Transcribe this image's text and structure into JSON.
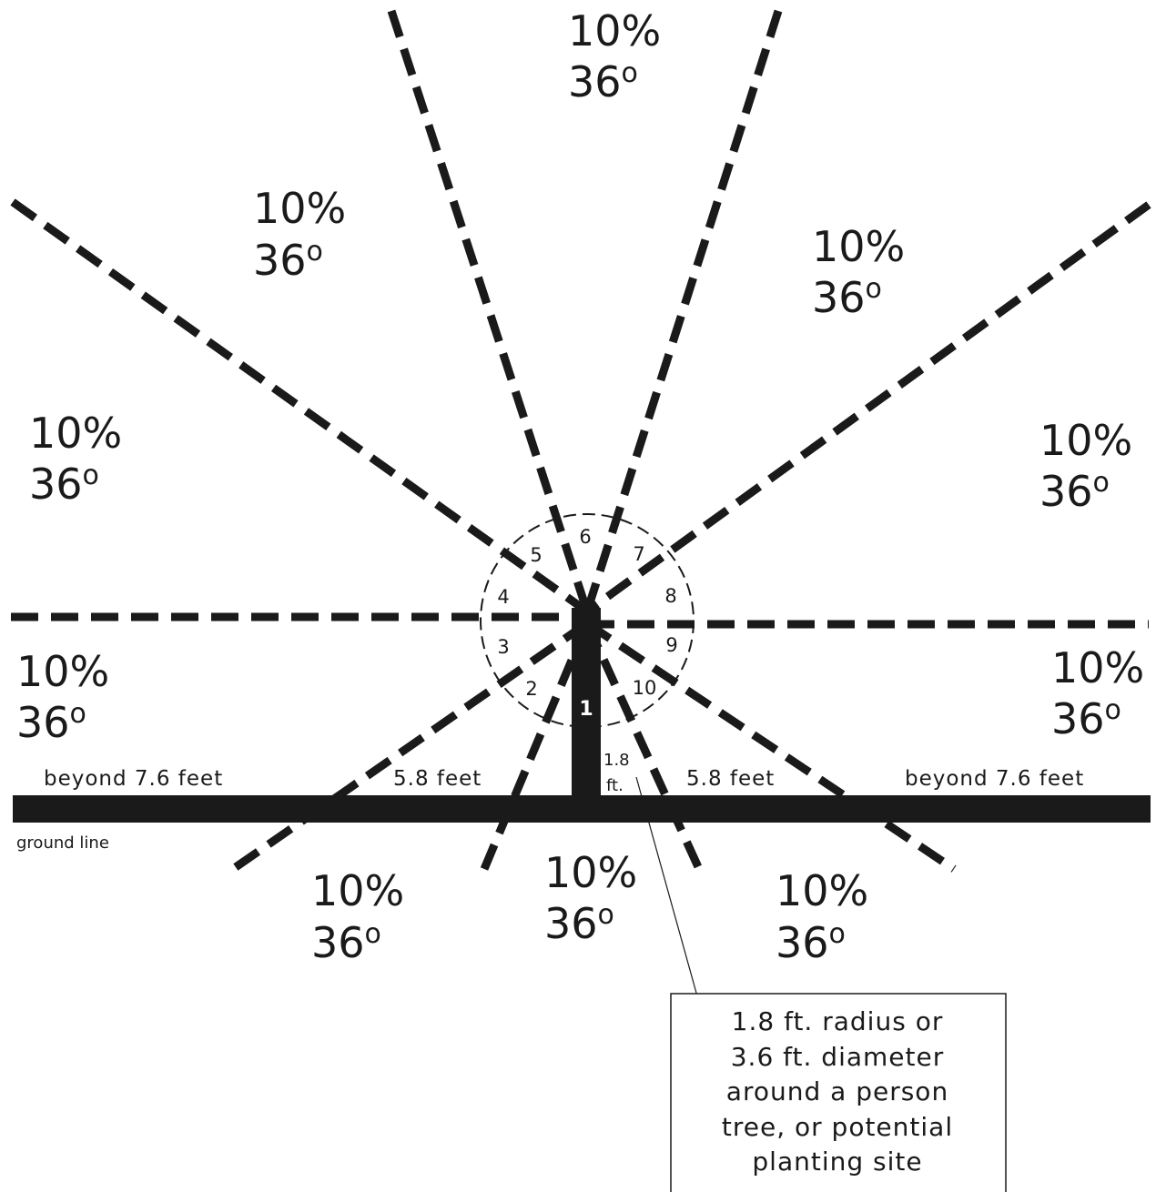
{
  "sector_labels": [
    {
      "percent": "10%",
      "angle": "36",
      "degree_mark": "o"
    },
    {
      "percent": "10%",
      "angle": "36",
      "degree_mark": "o"
    },
    {
      "percent": "10%",
      "angle": "36",
      "degree_mark": "o"
    },
    {
      "percent": "10%",
      "angle": "36",
      "degree_mark": "o"
    },
    {
      "percent": "10%",
      "angle": "36",
      "degree_mark": "o"
    },
    {
      "percent": "10%",
      "angle": "36",
      "degree_mark": "o"
    },
    {
      "percent": "10%",
      "angle": "36",
      "degree_mark": "o"
    },
    {
      "percent": "10%",
      "angle": "36",
      "degree_mark": "o"
    },
    {
      "percent": "10%",
      "angle": "36",
      "degree_mark": "o"
    },
    {
      "percent": "10%",
      "angle": "36",
      "degree_mark": "o"
    }
  ],
  "sector_numbers": [
    "1",
    "2",
    "3",
    "4",
    "5",
    "6",
    "7",
    "8",
    "9",
    "10"
  ],
  "distances": {
    "far_left": "beyond  7.6  feet",
    "near_left": "5.8 feet",
    "near_right": "5.8 feet",
    "far_right": "beyond  7.6  feet",
    "trunk_radius_line1": "1.8",
    "trunk_radius_line2": "ft."
  },
  "ground_line_label": "ground line",
  "note": {
    "lines": [
      "1.8 ft.  radius  or",
      "3.6 ft.  diameter",
      "around  a  person",
      "tree,  or  potential",
      "planting  site"
    ]
  },
  "colors": {
    "ink": "#1a1a1a",
    "background": "#ffffff"
  }
}
